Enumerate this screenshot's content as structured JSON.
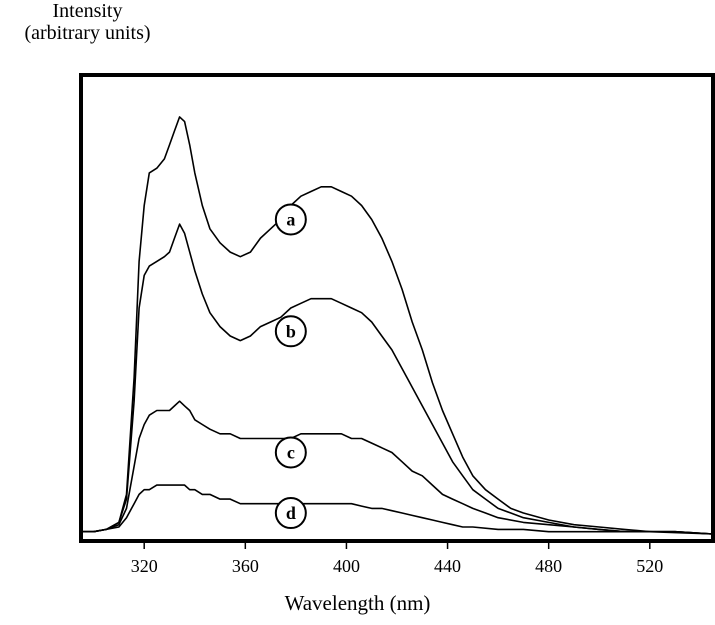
{
  "chart_data": {
    "type": "line",
    "title": "",
    "ylabel_lines": [
      "Intensity",
      "(arbitrary units)"
    ],
    "xlabel": "Wavelength (nm)",
    "xlim": [
      295,
      545
    ],
    "ylim": [
      0,
      1.0
    ],
    "x_ticks": [
      320,
      360,
      400,
      440,
      480,
      520
    ],
    "y_ticks_labeled": false,
    "grid": false,
    "series": [
      {
        "name": "a",
        "points": [
          [
            295,
            0.02
          ],
          [
            300,
            0.02
          ],
          [
            305,
            0.025
          ],
          [
            310,
            0.04
          ],
          [
            313,
            0.1
          ],
          [
            316,
            0.35
          ],
          [
            318,
            0.6
          ],
          [
            320,
            0.72
          ],
          [
            322,
            0.79
          ],
          [
            325,
            0.8
          ],
          [
            328,
            0.82
          ],
          [
            330,
            0.85
          ],
          [
            332,
            0.88
          ],
          [
            334,
            0.91
          ],
          [
            336,
            0.9
          ],
          [
            338,
            0.85
          ],
          [
            340,
            0.79
          ],
          [
            343,
            0.72
          ],
          [
            346,
            0.67
          ],
          [
            350,
            0.64
          ],
          [
            354,
            0.62
          ],
          [
            358,
            0.61
          ],
          [
            362,
            0.62
          ],
          [
            366,
            0.65
          ],
          [
            370,
            0.67
          ],
          [
            374,
            0.69
          ],
          [
            378,
            0.72
          ],
          [
            382,
            0.74
          ],
          [
            386,
            0.75
          ],
          [
            390,
            0.76
          ],
          [
            394,
            0.76
          ],
          [
            398,
            0.75
          ],
          [
            402,
            0.74
          ],
          [
            406,
            0.72
          ],
          [
            410,
            0.69
          ],
          [
            414,
            0.65
          ],
          [
            418,
            0.6
          ],
          [
            422,
            0.54
          ],
          [
            426,
            0.47
          ],
          [
            430,
            0.41
          ],
          [
            434,
            0.34
          ],
          [
            438,
            0.28
          ],
          [
            442,
            0.23
          ],
          [
            446,
            0.18
          ],
          [
            450,
            0.14
          ],
          [
            455,
            0.11
          ],
          [
            460,
            0.09
          ],
          [
            465,
            0.07
          ],
          [
            470,
            0.06
          ],
          [
            480,
            0.045
          ],
          [
            490,
            0.035
          ],
          [
            500,
            0.03
          ],
          [
            510,
            0.025
          ],
          [
            520,
            0.02
          ],
          [
            530,
            0.02
          ],
          [
            545,
            0.015
          ]
        ]
      },
      {
        "name": "b",
        "points": [
          [
            295,
            0.02
          ],
          [
            300,
            0.02
          ],
          [
            305,
            0.025
          ],
          [
            310,
            0.04
          ],
          [
            313,
            0.09
          ],
          [
            316,
            0.3
          ],
          [
            318,
            0.5
          ],
          [
            320,
            0.57
          ],
          [
            322,
            0.59
          ],
          [
            325,
            0.6
          ],
          [
            328,
            0.61
          ],
          [
            330,
            0.62
          ],
          [
            332,
            0.65
          ],
          [
            334,
            0.68
          ],
          [
            336,
            0.66
          ],
          [
            338,
            0.62
          ],
          [
            340,
            0.58
          ],
          [
            343,
            0.53
          ],
          [
            346,
            0.49
          ],
          [
            350,
            0.46
          ],
          [
            354,
            0.44
          ],
          [
            358,
            0.43
          ],
          [
            362,
            0.44
          ],
          [
            366,
            0.46
          ],
          [
            370,
            0.47
          ],
          [
            374,
            0.48
          ],
          [
            378,
            0.5
          ],
          [
            382,
            0.51
          ],
          [
            386,
            0.52
          ],
          [
            390,
            0.52
          ],
          [
            394,
            0.52
          ],
          [
            398,
            0.51
          ],
          [
            402,
            0.5
          ],
          [
            406,
            0.49
          ],
          [
            410,
            0.47
          ],
          [
            414,
            0.44
          ],
          [
            418,
            0.41
          ],
          [
            422,
            0.37
          ],
          [
            426,
            0.33
          ],
          [
            430,
            0.29
          ],
          [
            434,
            0.25
          ],
          [
            438,
            0.21
          ],
          [
            442,
            0.17
          ],
          [
            446,
            0.14
          ],
          [
            450,
            0.11
          ],
          [
            455,
            0.09
          ],
          [
            460,
            0.07
          ],
          [
            465,
            0.06
          ],
          [
            470,
            0.05
          ],
          [
            480,
            0.04
          ],
          [
            490,
            0.03
          ],
          [
            500,
            0.025
          ],
          [
            510,
            0.02
          ],
          [
            520,
            0.02
          ],
          [
            530,
            0.02
          ],
          [
            545,
            0.015
          ]
        ]
      },
      {
        "name": "c",
        "points": [
          [
            295,
            0.02
          ],
          [
            300,
            0.02
          ],
          [
            305,
            0.025
          ],
          [
            310,
            0.035
          ],
          [
            313,
            0.07
          ],
          [
            316,
            0.16
          ],
          [
            318,
            0.22
          ],
          [
            320,
            0.25
          ],
          [
            322,
            0.27
          ],
          [
            325,
            0.28
          ],
          [
            328,
            0.28
          ],
          [
            330,
            0.28
          ],
          [
            332,
            0.29
          ],
          [
            334,
            0.3
          ],
          [
            336,
            0.29
          ],
          [
            338,
            0.28
          ],
          [
            340,
            0.26
          ],
          [
            343,
            0.25
          ],
          [
            346,
            0.24
          ],
          [
            350,
            0.23
          ],
          [
            354,
            0.23
          ],
          [
            358,
            0.22
          ],
          [
            362,
            0.22
          ],
          [
            366,
            0.22
          ],
          [
            370,
            0.22
          ],
          [
            374,
            0.22
          ],
          [
            378,
            0.22
          ],
          [
            382,
            0.23
          ],
          [
            386,
            0.23
          ],
          [
            390,
            0.23
          ],
          [
            394,
            0.23
          ],
          [
            398,
            0.23
          ],
          [
            402,
            0.22
          ],
          [
            406,
            0.22
          ],
          [
            410,
            0.21
          ],
          [
            414,
            0.2
          ],
          [
            418,
            0.19
          ],
          [
            422,
            0.17
          ],
          [
            426,
            0.15
          ],
          [
            430,
            0.14
          ],
          [
            434,
            0.12
          ],
          [
            438,
            0.1
          ],
          [
            442,
            0.09
          ],
          [
            446,
            0.08
          ],
          [
            450,
            0.07
          ],
          [
            455,
            0.06
          ],
          [
            460,
            0.05
          ],
          [
            470,
            0.04
          ],
          [
            480,
            0.035
          ],
          [
            490,
            0.03
          ],
          [
            500,
            0.025
          ],
          [
            510,
            0.02
          ],
          [
            520,
            0.02
          ],
          [
            530,
            0.02
          ],
          [
            545,
            0.015
          ]
        ]
      },
      {
        "name": "d",
        "points": [
          [
            295,
            0.02
          ],
          [
            300,
            0.02
          ],
          [
            305,
            0.025
          ],
          [
            310,
            0.03
          ],
          [
            313,
            0.05
          ],
          [
            316,
            0.08
          ],
          [
            318,
            0.1
          ],
          [
            320,
            0.11
          ],
          [
            322,
            0.11
          ],
          [
            325,
            0.12
          ],
          [
            328,
            0.12
          ],
          [
            330,
            0.12
          ],
          [
            332,
            0.12
          ],
          [
            334,
            0.12
          ],
          [
            336,
            0.12
          ],
          [
            338,
            0.11
          ],
          [
            340,
            0.11
          ],
          [
            343,
            0.1
          ],
          [
            346,
            0.1
          ],
          [
            350,
            0.09
          ],
          [
            354,
            0.09
          ],
          [
            358,
            0.08
          ],
          [
            362,
            0.08
          ],
          [
            366,
            0.08
          ],
          [
            370,
            0.08
          ],
          [
            374,
            0.08
          ],
          [
            378,
            0.08
          ],
          [
            382,
            0.08
          ],
          [
            386,
            0.08
          ],
          [
            390,
            0.08
          ],
          [
            394,
            0.08
          ],
          [
            398,
            0.08
          ],
          [
            402,
            0.08
          ],
          [
            406,
            0.075
          ],
          [
            410,
            0.07
          ],
          [
            414,
            0.07
          ],
          [
            418,
            0.065
          ],
          [
            422,
            0.06
          ],
          [
            426,
            0.055
          ],
          [
            430,
            0.05
          ],
          [
            434,
            0.045
          ],
          [
            438,
            0.04
          ],
          [
            442,
            0.035
          ],
          [
            446,
            0.03
          ],
          [
            450,
            0.03
          ],
          [
            460,
            0.025
          ],
          [
            470,
            0.025
          ],
          [
            480,
            0.02
          ],
          [
            500,
            0.02
          ],
          [
            520,
            0.02
          ],
          [
            545,
            0.015
          ]
        ]
      }
    ],
    "annotations": [
      {
        "label": "a",
        "x": 378,
        "y": 0.69
      },
      {
        "label": "b",
        "x": 378,
        "y": 0.45
      },
      {
        "label": "c",
        "x": 378,
        "y": 0.19
      },
      {
        "label": "d",
        "x": 378,
        "y": 0.06
      }
    ]
  }
}
